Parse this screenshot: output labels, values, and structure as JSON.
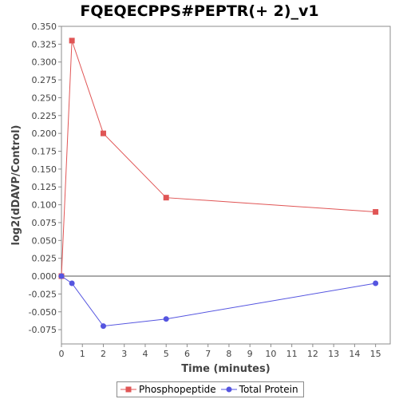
{
  "chart_data": {
    "type": "line",
    "title": "FQEQECPPS#PEPTR(+ 2)_v1",
    "xlabel": "Time (minutes)",
    "ylabel": "log2(dDAVP/Control)",
    "xlim": [
      0,
      15.7
    ],
    "ylim": [
      -0.095,
      0.35
    ],
    "xticks": [
      "0",
      "1",
      "2",
      "3",
      "4",
      "5",
      "6",
      "7",
      "8",
      "9",
      "10",
      "11",
      "12",
      "13",
      "14",
      "15"
    ],
    "yticks": [
      "0.350",
      "0.325",
      "0.300",
      "0.275",
      "0.250",
      "0.225",
      "0.200",
      "0.175",
      "0.150",
      "0.125",
      "0.100",
      "0.075",
      "0.050",
      "0.025",
      "0.000",
      "-0.025",
      "-0.050",
      "-0.075"
    ],
    "grid": false,
    "zero_line": true,
    "legend_position": "bottom",
    "series": [
      {
        "name": "Phosphopeptide",
        "color": "#e05555",
        "marker": "square",
        "x": [
          0,
          0.5,
          2,
          5,
          15
        ],
        "y": [
          0.0,
          0.33,
          0.2,
          0.11,
          0.09
        ]
      },
      {
        "name": "Total Protein",
        "color": "#5555e0",
        "marker": "circle",
        "x": [
          0,
          0.5,
          2,
          5,
          15
        ],
        "y": [
          0.0,
          -0.01,
          -0.07,
          -0.06,
          -0.01
        ]
      }
    ]
  }
}
